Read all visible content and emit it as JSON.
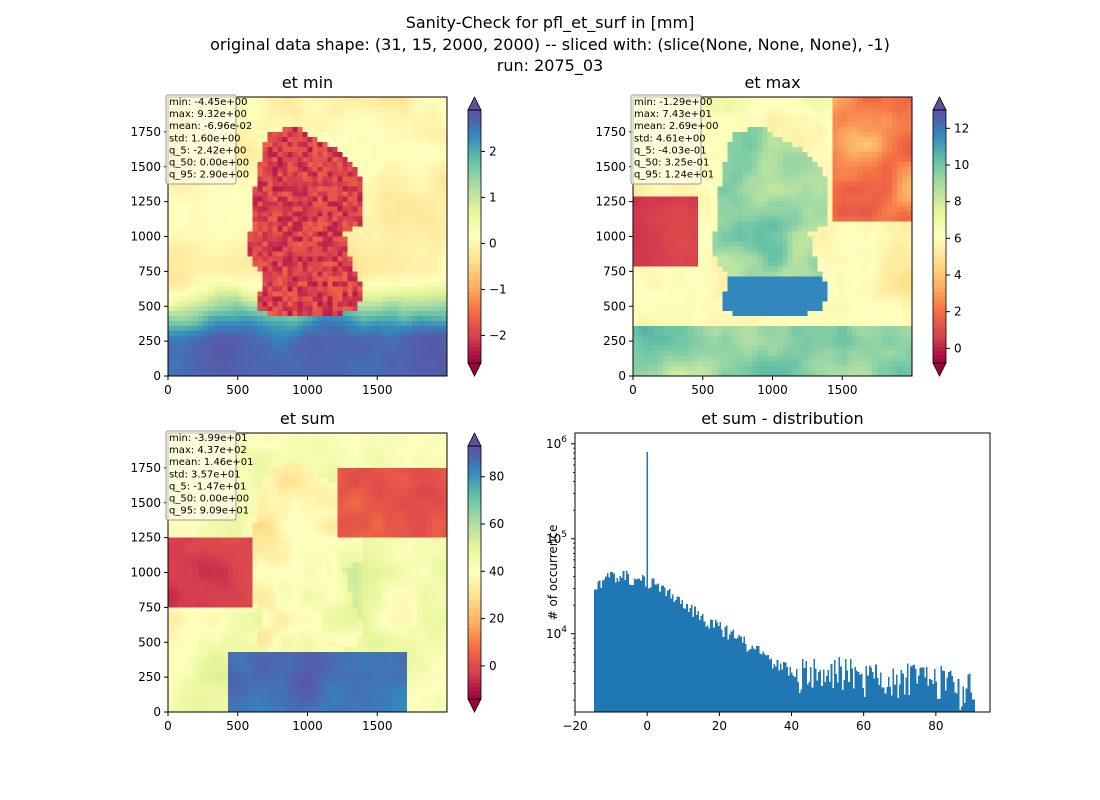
{
  "figure": {
    "title_lines": [
      "Sanity-Check for pfl_et_surf in [mm]",
      "original data shape: (31, 15, 2000, 2000) -- sliced with: (slice(None, None, None), -1)",
      "run: 2075_03"
    ]
  },
  "chart_data": [
    {
      "type": "heatmap",
      "title": "et min",
      "colormap": "Spectral",
      "x_ticks": [
        0,
        500,
        1000,
        1500
      ],
      "y_ticks": [
        0,
        250,
        500,
        750,
        1000,
        1250,
        1500,
        1750
      ],
      "xlim": [
        0,
        2000
      ],
      "ylim": [
        0,
        2000
      ],
      "colorbar": {
        "range": [
          -2.6,
          2.9
        ],
        "ticks": [
          -2,
          -1,
          0,
          1,
          2
        ],
        "tick_labels": [
          "−2",
          "−1",
          "0",
          "1",
          "2"
        ],
        "extend": "both"
      },
      "stats": [
        "min: -4.45e+00",
        "max: 9.32e+00",
        "mean: -6.96e-02",
        "std: 1.60e+00",
        "q_5: -2.42e+00",
        "q_50: 0.00e+00",
        "q_95: 2.90e+00"
      ]
    },
    {
      "type": "heatmap",
      "title": "et max",
      "colormap": "Spectral",
      "x_ticks": [
        0,
        500,
        1000,
        1500
      ],
      "y_ticks": [
        0,
        250,
        500,
        750,
        1000,
        1250,
        1500,
        1750
      ],
      "xlim": [
        0,
        2000
      ],
      "ylim": [
        0,
        2000
      ],
      "colorbar": {
        "range": [
          -0.8,
          13
        ],
        "ticks": [
          0,
          2,
          4,
          6,
          8,
          10,
          12
        ],
        "tick_labels": [
          "0",
          "2",
          "4",
          "6",
          "8",
          "10",
          "12"
        ],
        "extend": "both"
      },
      "stats": [
        "min: -1.29e+00",
        "max: 7.43e+01",
        "mean: 2.69e+00",
        "std: 4.61e+00",
        "q_5: -4.03e-01",
        "q_50: 3.25e-01",
        "q_95: 1.24e+01"
      ]
    },
    {
      "type": "heatmap",
      "title": "et sum",
      "colormap": "Spectral",
      "x_ticks": [
        0,
        500,
        1000,
        1500
      ],
      "y_ticks": [
        0,
        250,
        500,
        750,
        1000,
        1250,
        1500,
        1750
      ],
      "xlim": [
        0,
        2000
      ],
      "ylim": [
        0,
        2000
      ],
      "colorbar": {
        "range": [
          -14,
          93
        ],
        "ticks": [
          0,
          20,
          40,
          60,
          80
        ],
        "tick_labels": [
          "0",
          "20",
          "40",
          "60",
          "80"
        ],
        "extend": "both"
      },
      "stats": [
        "min: -3.99e+01",
        "max: 4.37e+02",
        "mean: 1.46e+01",
        "std: 3.57e+01",
        "q_5: -1.47e+01",
        "q_50: 0.00e+00",
        "q_95: 9.09e+01"
      ]
    },
    {
      "type": "bar",
      "title": "et sum - distribution",
      "xlabel": "",
      "ylabel": "# of occurrence",
      "log_y": true,
      "xlim": [
        -20,
        95
      ],
      "ylim": [
        1500,
        1300000
      ],
      "x_ticks": [
        -20,
        0,
        20,
        40,
        60,
        80
      ],
      "x_tick_labels": [
        "−20",
        "0",
        "20",
        "40",
        "60",
        "80"
      ],
      "y_ticks": [
        10000,
        100000,
        1000000
      ],
      "y_tick_labels": [
        [
          "10",
          "4"
        ],
        [
          "10",
          "5"
        ],
        [
          "10",
          "6"
        ]
      ],
      "bin_range": [
        -14.7,
        90.9
      ],
      "spike": {
        "x": 0,
        "value": 820000
      },
      "anchor_points": [
        [
          -14.7,
          28000
        ],
        [
          -12,
          36000
        ],
        [
          -8,
          42000
        ],
        [
          -5,
          40000
        ],
        [
          -1,
          36000
        ],
        [
          1,
          36000
        ],
        [
          4,
          30000
        ],
        [
          8,
          24000
        ],
        [
          12,
          18000
        ],
        [
          16,
          14500
        ],
        [
          20,
          11500
        ],
        [
          25,
          9000
        ],
        [
          30,
          6800
        ],
        [
          35,
          5000
        ],
        [
          40,
          4000
        ],
        [
          45,
          3800
        ],
        [
          50,
          3900
        ],
        [
          55,
          4000
        ],
        [
          60,
          3600
        ],
        [
          65,
          3600
        ],
        [
          70,
          3400
        ],
        [
          75,
          3500
        ],
        [
          80,
          3300
        ],
        [
          85,
          2900
        ],
        [
          90.9,
          2600
        ]
      ]
    }
  ]
}
